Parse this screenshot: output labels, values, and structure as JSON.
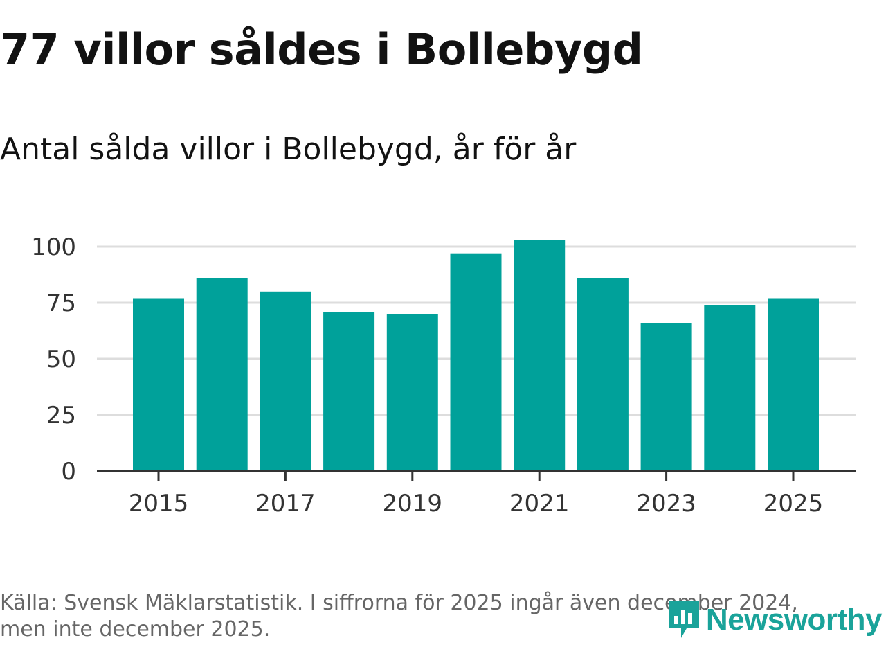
{
  "page": {
    "title": "77 villor såldes i Bollebygd",
    "subtitle": "Antal sålda villor i Bollebygd, år för år",
    "footer_line1": "Källa: Svensk Mäklarstatistik. I siffrorna för 2025 ingår även december 2024,",
    "footer_line2": "men inte december 2025.",
    "logo_text": "Newsworthy"
  },
  "colors": {
    "bar": "#00a19a",
    "grid": "#dddddd",
    "axis": "#333333",
    "logo": "#1aa39a"
  },
  "chart_data": {
    "type": "bar",
    "title": "Antal sålda villor i Bollebygd, år för år",
    "xlabel": "",
    "ylabel": "",
    "categories": [
      "2015",
      "2016",
      "2017",
      "2018",
      "2019",
      "2020",
      "2021",
      "2022",
      "2023",
      "2024",
      "2025"
    ],
    "values": [
      77,
      86,
      80,
      71,
      70,
      97,
      103,
      86,
      66,
      74,
      77
    ],
    "ylim": [
      0,
      100
    ],
    "yticks": [
      0,
      25,
      50,
      75,
      100
    ],
    "xtick_labels": [
      "2015",
      "2017",
      "2019",
      "2021",
      "2023",
      "2025"
    ],
    "grid": true
  }
}
